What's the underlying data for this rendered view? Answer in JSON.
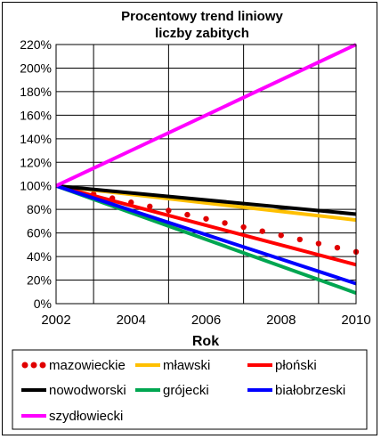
{
  "chart_data": {
    "type": "line",
    "title": [
      "Procentowy trend liniowy",
      "liczby zabitych"
    ],
    "xlabel": "Rok",
    "ylabel": "",
    "xlim": [
      2002,
      2010
    ],
    "ylim": [
      0,
      220
    ],
    "x_ticks": [
      "2002",
      "2004",
      "2006",
      "2008",
      "2010"
    ],
    "y_ticks": [
      "0%",
      "20%",
      "40%",
      "60%",
      "80%",
      "100%",
      "120%",
      "140%",
      "160%",
      "180%",
      "200%",
      "220%"
    ],
    "vertical_gridlines_x": [
      2003,
      2005,
      2007,
      2009
    ],
    "legend_position": "bottom",
    "series": [
      {
        "name": "mazowieckie",
        "style": "dotted",
        "color": "#e00000",
        "x": [
          2002,
          2010
        ],
        "y": [
          100,
          44
        ]
      },
      {
        "name": "mławski",
        "style": "solid",
        "color": "#ffc000",
        "x": [
          2002,
          2010
        ],
        "y": [
          100,
          71
        ]
      },
      {
        "name": "płoński",
        "style": "solid",
        "color": "#ff0000",
        "x": [
          2002,
          2010
        ],
        "y": [
          100,
          33
        ]
      },
      {
        "name": "nowodworski",
        "style": "solid",
        "color": "#000000",
        "x": [
          2002,
          2010
        ],
        "y": [
          100,
          76
        ]
      },
      {
        "name": "grójecki",
        "style": "solid",
        "color": "#00a651",
        "x": [
          2002,
          2010
        ],
        "y": [
          100,
          9
        ]
      },
      {
        "name": "białobrzeski",
        "style": "solid",
        "color": "#0000ff",
        "x": [
          2002,
          2010
        ],
        "y": [
          100,
          17
        ]
      },
      {
        "name": "szydłowiecki",
        "style": "solid",
        "color": "#ff00ff",
        "x": [
          2002,
          2010
        ],
        "y": [
          100,
          220
        ]
      }
    ]
  }
}
